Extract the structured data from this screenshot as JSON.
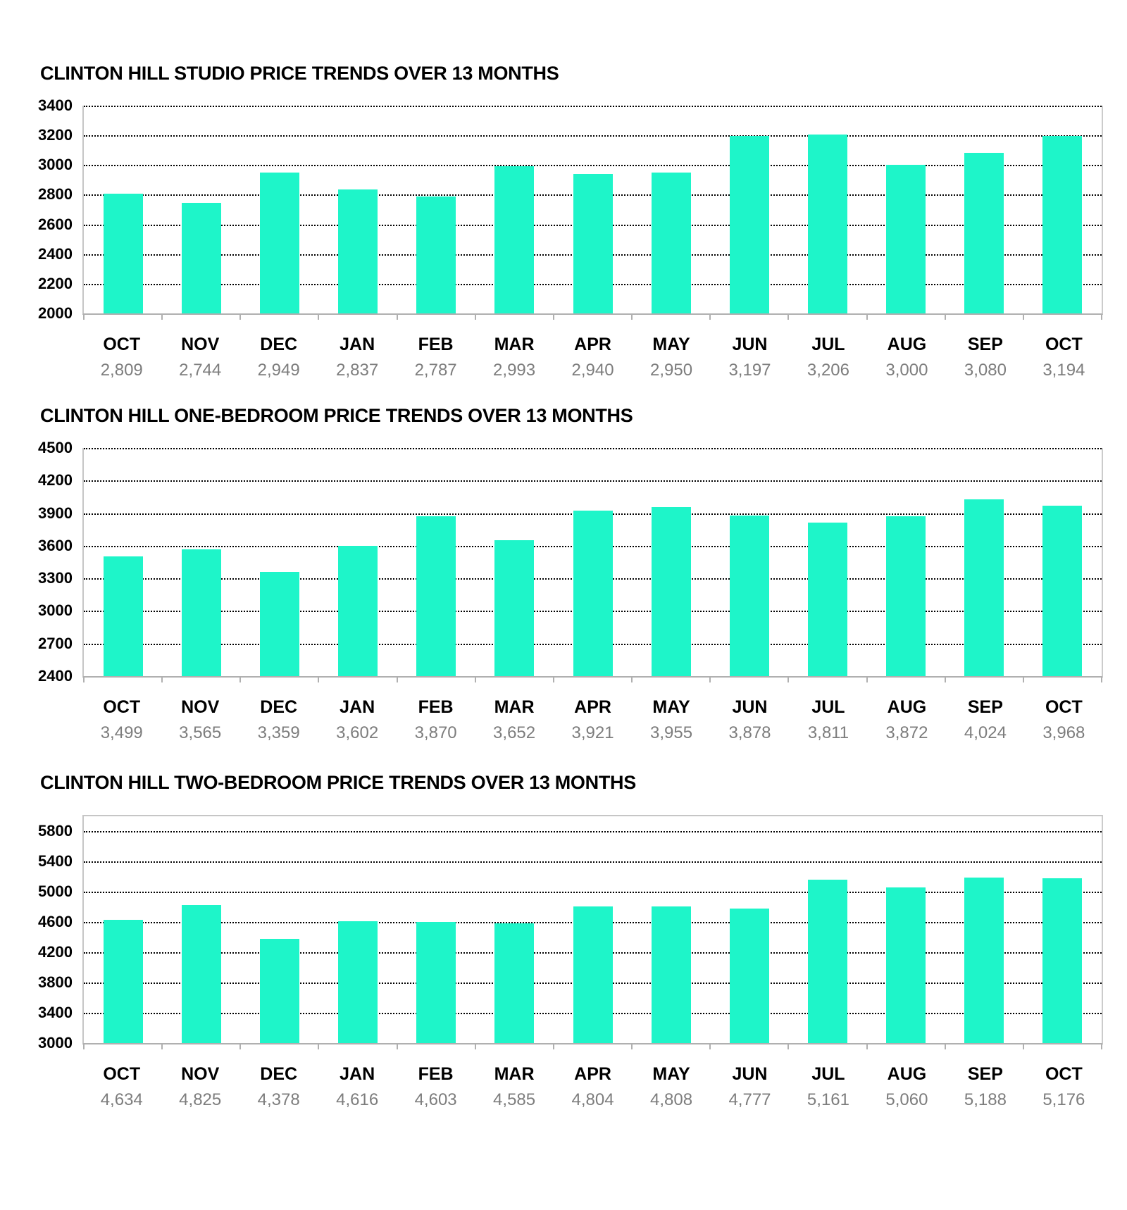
{
  "page": {
    "background": "#ffffff"
  },
  "colors": {
    "bar": "#1ef5c9",
    "gridline": "#000000",
    "axis": "#b0b0b0",
    "title_text": "#000000",
    "month_label_text": "#000000",
    "value_label_text": "#7d7d7d"
  },
  "chart_data": [
    {
      "type": "bar",
      "title": "CLINTON HILL STUDIO PRICE TRENDS OVER 13 MONTHS",
      "categories": [
        "OCT",
        "NOV",
        "DEC",
        "JAN",
        "FEB",
        "MAR",
        "APR",
        "MAY",
        "JUN",
        "JUL",
        "AUG",
        "SEP",
        "OCT"
      ],
      "values": [
        2809,
        2744,
        2949,
        2837,
        2787,
        2993,
        2940,
        2950,
        3197,
        3206,
        3000,
        3080,
        3194
      ],
      "value_labels": [
        "2,809",
        "2,744",
        "2,949",
        "2,837",
        "2,787",
        "2,993",
        "2,940",
        "2,950",
        "3,197",
        "3,206",
        "3,000",
        "3,080",
        "3,194"
      ],
      "yticks": [
        3400,
        3200,
        3000,
        2800,
        2600,
        2400,
        2200,
        2000
      ],
      "ylim": [
        2000,
        3400
      ],
      "grid": "dotted-horizontal",
      "legend": null
    },
    {
      "type": "bar",
      "title": "CLINTON HILL ONE-BEDROOM PRICE TRENDS OVER 13 MONTHS",
      "categories": [
        "OCT",
        "NOV",
        "DEC",
        "JAN",
        "FEB",
        "MAR",
        "APR",
        "MAY",
        "JUN",
        "JUL",
        "AUG",
        "SEP",
        "OCT"
      ],
      "values": [
        3499,
        3565,
        3359,
        3602,
        3870,
        3652,
        3921,
        3955,
        3878,
        3811,
        3872,
        4024,
        3968
      ],
      "value_labels": [
        "3,499",
        "3,565",
        "3,359",
        "3,602",
        "3,870",
        "3,652",
        "3,921",
        "3,955",
        "3,878",
        "3,811",
        "3,872",
        "4,024",
        "3,968"
      ],
      "yticks": [
        4500,
        4200,
        3900,
        3600,
        3300,
        3000,
        2700,
        2400
      ],
      "ylim": [
        2400,
        4500
      ],
      "grid": "dotted-horizontal",
      "legend": null
    },
    {
      "type": "bar",
      "title": "CLINTON HILL TWO-BEDROOM PRICE TRENDS OVER 13 MONTHS",
      "categories": [
        "OCT",
        "NOV",
        "DEC",
        "JAN",
        "FEB",
        "MAR",
        "APR",
        "MAY",
        "JUN",
        "JUL",
        "AUG",
        "SEP",
        "OCT"
      ],
      "values": [
        4634,
        4825,
        4378,
        4616,
        4603,
        4585,
        4804,
        4808,
        4777,
        5161,
        5060,
        5188,
        5176
      ],
      "value_labels": [
        "4,634",
        "4,825",
        "4,378",
        "4,616",
        "4,603",
        "4,585",
        "4,804",
        "4,808",
        "4,777",
        "5,161",
        "5,060",
        "5,188",
        "5,176"
      ],
      "yticks": [
        5800,
        5400,
        5000,
        4600,
        4200,
        3800,
        3400,
        3000
      ],
      "ylim": [
        3000,
        6000
      ],
      "grid": "dotted-horizontal",
      "legend": null
    }
  ]
}
